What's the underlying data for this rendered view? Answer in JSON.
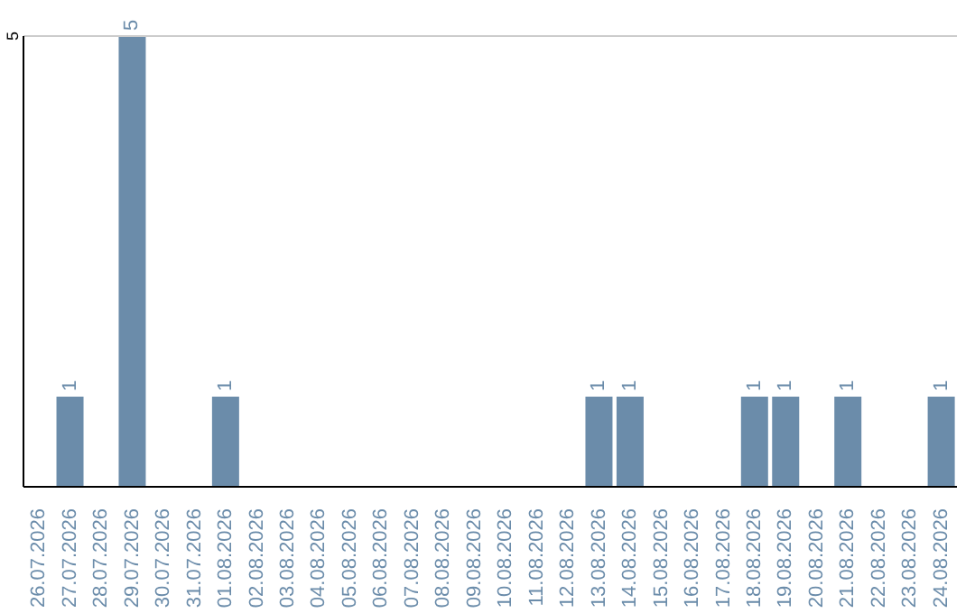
{
  "chart_data": {
    "type": "bar",
    "ylim": [
      0,
      5
    ],
    "categories": [
      "26.07.2026",
      "27.07.2026",
      "28.07.2026",
      "29.07.2026",
      "30.07.2026",
      "31.07.2026",
      "01.08.2026",
      "02.08.2026",
      "03.08.2026",
      "04.08.2026",
      "05.08.2026",
      "06.08.2026",
      "07.08.2026",
      "08.08.2026",
      "09.08.2026",
      "10.08.2026",
      "11.08.2026",
      "12.08.2026",
      "13.08.2026",
      "14.08.2026",
      "15.08.2026",
      "16.08.2026",
      "17.08.2026",
      "18.08.2026",
      "19.08.2026",
      "20.08.2026",
      "21.08.2026",
      "22.08.2026",
      "23.08.2026",
      "24.08.2026"
    ],
    "values": [
      0,
      1,
      0,
      5,
      0,
      0,
      1,
      0,
      0,
      0,
      0,
      0,
      0,
      0,
      0,
      0,
      0,
      0,
      1,
      1,
      0,
      0,
      0,
      1,
      1,
      0,
      1,
      0,
      0,
      1
    ],
    "value_labels": [
      null,
      "1",
      null,
      "5",
      null,
      null,
      "1",
      null,
      null,
      null,
      null,
      null,
      null,
      null,
      null,
      null,
      null,
      null,
      "1",
      "1",
      null,
      null,
      null,
      "1",
      "1",
      null,
      "1",
      null,
      null,
      "1"
    ],
    "color": "#6b8caa",
    "ref_lines": [
      {
        "axis": "y",
        "value": 5,
        "label": "5",
        "color": "#cccccc"
      }
    ]
  }
}
